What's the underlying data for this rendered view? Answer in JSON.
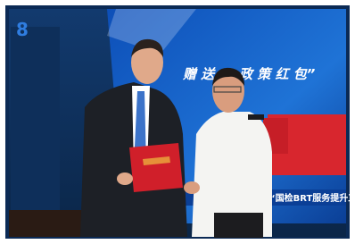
{
  "photo": {
    "badge": "8",
    "banner_left": "赠 送",
    "banner_right": "政 策 红 包”",
    "caption": "速“国检BRT服务提升工"
  }
}
